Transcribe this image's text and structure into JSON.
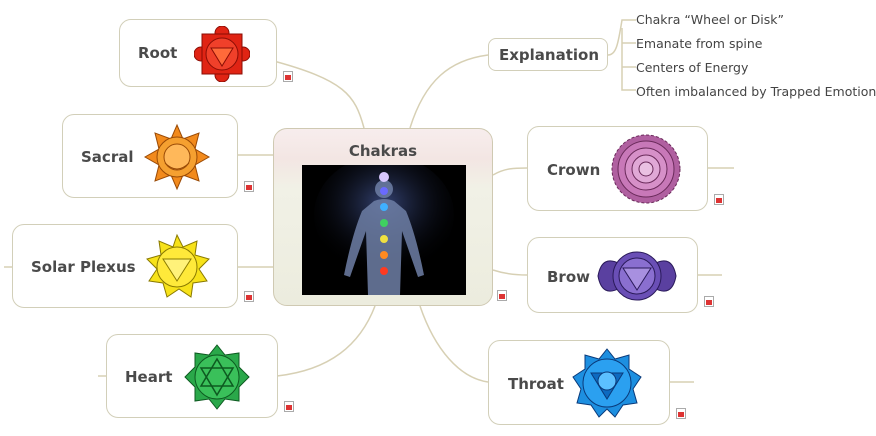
{
  "center": {
    "title": "Chakras"
  },
  "explanation": {
    "title": "Explanation",
    "items": [
      "Chakra “Wheel or Disk”",
      "Emanate from spine",
      "Centers of Energy",
      "Often imbalanced by Trapped Emotions"
    ]
  },
  "chakras": {
    "root": {
      "label": "Root",
      "color": "#e02414",
      "icon": "root-chakra-icon"
    },
    "sacral": {
      "label": "Sacral",
      "color": "#f28a1c",
      "icon": "sacral-chakra-icon"
    },
    "solar": {
      "label": "Solar Plexus",
      "color": "#f7e21a",
      "icon": "solar-plexus-chakra-icon"
    },
    "heart": {
      "label": "Heart",
      "color": "#2aa84a",
      "icon": "heart-chakra-icon"
    },
    "crown": {
      "label": "Crown",
      "color": "#c06ab0",
      "icon": "crown-chakra-icon"
    },
    "brow": {
      "label": "Brow",
      "color": "#6a4fb6",
      "icon": "brow-chakra-icon"
    },
    "throat": {
      "label": "Throat",
      "color": "#1d8fe0",
      "icon": "throat-chakra-icon"
    }
  }
}
